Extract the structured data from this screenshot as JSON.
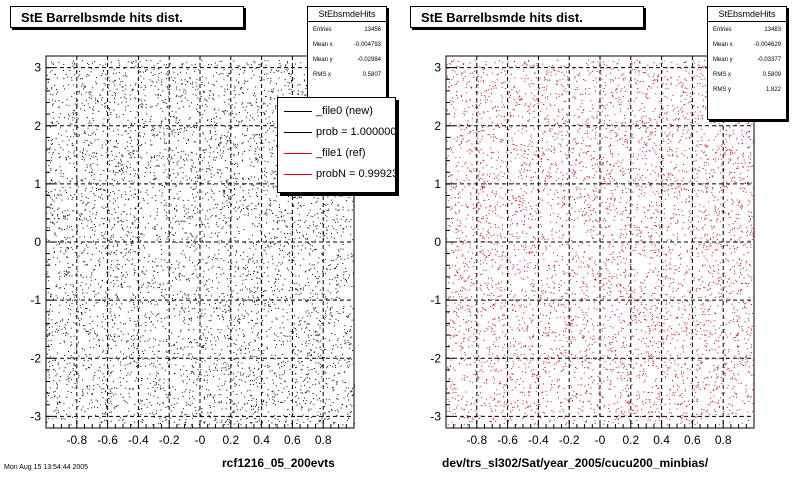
{
  "colors": {
    "black": "#000000",
    "red": "#dd0000"
  },
  "chart_data": [
    {
      "type": "scatter",
      "title": "StE Barrelbsmde hits dist.",
      "xlabel": "rcf1216_05_200evts",
      "ylabel": "",
      "xlim": [
        -1.0,
        1.0
      ],
      "ylim": [
        -3.2,
        3.2
      ],
      "x_ticks": [
        "-0.8",
        "-0.6",
        "-0.4",
        "-0.2",
        "-0",
        "0.2",
        "0.4",
        "0.6",
        "0.8"
      ],
      "y_ticks": [
        "-3",
        "-2",
        "-1",
        "0",
        "1",
        "2",
        "3"
      ],
      "grid": true,
      "marker_color": "#000000",
      "series": [
        {
          "distribution": "uniform",
          "x_range": [
            -1.0,
            1.0
          ],
          "y_range": [
            -3.14,
            3.14
          ],
          "entries": 13456
        }
      ],
      "stats": {
        "name": "StEbsmdeHits",
        "rows": [
          {
            "label": "Entries",
            "value": "13456"
          },
          {
            "label": "Mean x",
            "value": "-0.004793"
          },
          {
            "label": "Mean y",
            "value": "-0.02984"
          },
          {
            "label": "RMS x",
            "value": "0.5807"
          }
        ]
      },
      "legend": {
        "placement": "top-right",
        "entries": [
          {
            "label": "_file0 (new)",
            "color": "#000000"
          },
          {
            "label": "prob = 1.000000",
            "color": "#000000"
          },
          {
            "label": "_file1 (ref)",
            "color": "#dd0000"
          },
          {
            "label": "probN = 0.999230",
            "color": "#dd0000"
          }
        ]
      }
    },
    {
      "type": "scatter",
      "title": "StE Barrelbsmde hits dist.",
      "xlabel": "dev/trs_sl302/Sat/year_2005/cucu200_minbias/",
      "ylabel": "",
      "xlim": [
        -1.0,
        1.0
      ],
      "ylim": [
        -3.2,
        3.2
      ],
      "x_ticks": [
        "-0.8",
        "-0.6",
        "-0.4",
        "-0.2",
        "-0",
        "0.2",
        "0.4",
        "0.6",
        "0.8"
      ],
      "y_ticks": [
        "-3",
        "-2",
        "-1",
        "0",
        "1",
        "2",
        "3"
      ],
      "grid": true,
      "marker_color": "#dd0000",
      "series": [
        {
          "distribution": "uniform",
          "x_range": [
            -1.0,
            1.0
          ],
          "y_range": [
            -3.14,
            3.14
          ],
          "entries": 13483
        }
      ],
      "stats": {
        "name": "StEbsmdeHits",
        "rows": [
          {
            "label": "Entries",
            "value": "13483"
          },
          {
            "label": "Mean x",
            "value": "-0.004629"
          },
          {
            "label": "Mean y",
            "value": "-0.03377"
          },
          {
            "label": "RMS x",
            "value": "0.5809"
          },
          {
            "label": "RMS y",
            "value": "1.822"
          }
        ]
      }
    }
  ],
  "footer": {
    "timestamp": "Mon Aug 15 13:54:44 2005"
  }
}
